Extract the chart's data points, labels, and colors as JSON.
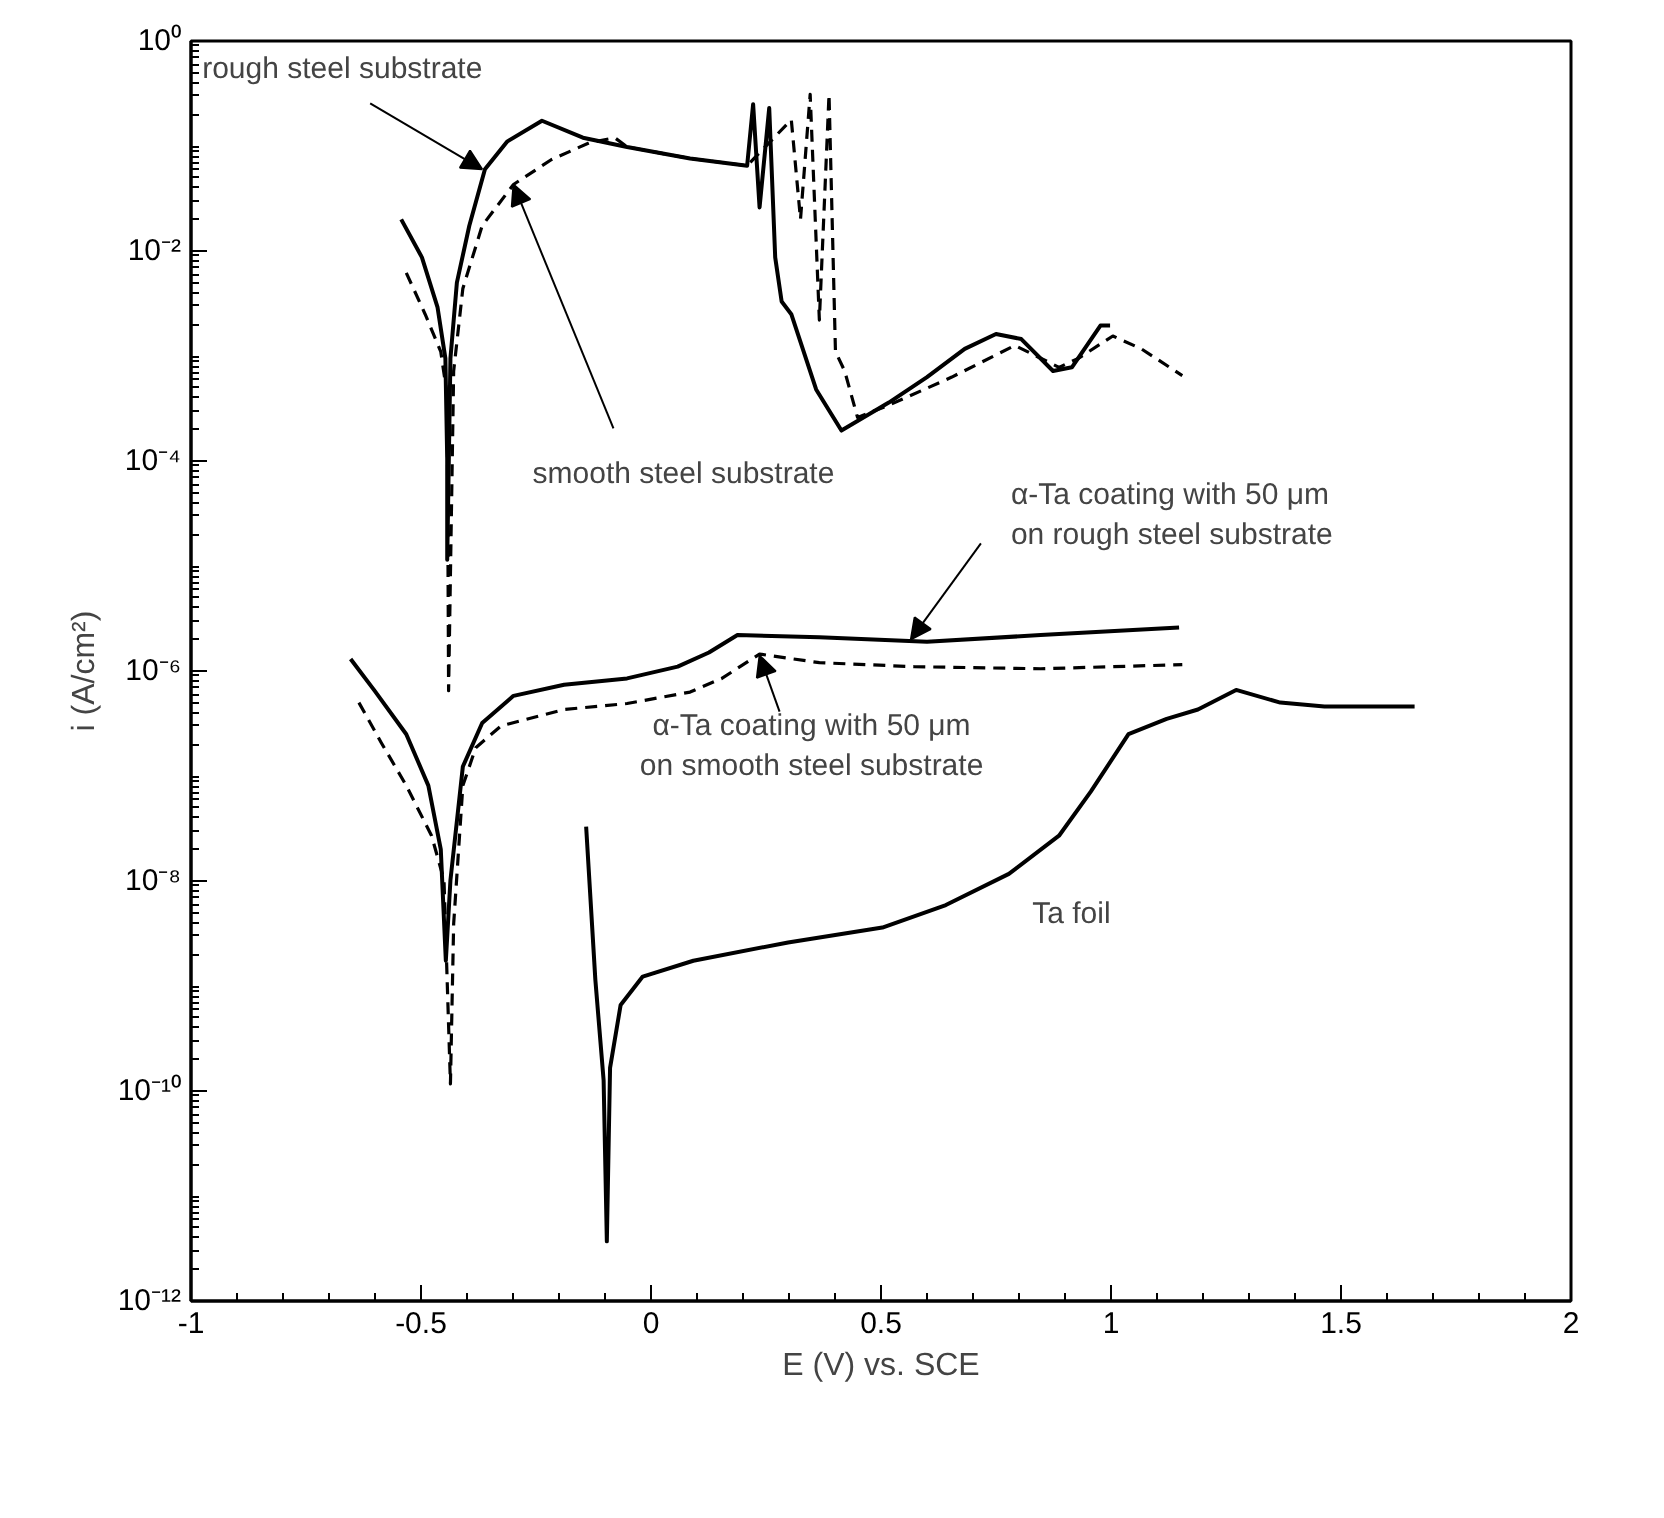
{
  "chart_data": {
    "type": "line",
    "xlabel": "E (V) vs. SCE",
    "ylabel": "i (A/cm²)",
    "log": "y",
    "xlim": [
      -1,
      2
    ],
    "xticks": [
      -1,
      -0.5,
      0,
      0.5,
      1,
      1.5,
      2
    ],
    "ylim": [
      1e-12,
      1
    ],
    "yticks": [
      {
        "value": 1e-12,
        "label": "10⁻¹²"
      },
      {
        "value": 1e-10,
        "label": "10⁻¹⁰"
      },
      {
        "value": 1e-08,
        "label": "10⁻⁸"
      },
      {
        "value": 1e-06,
        "label": "10⁻⁶"
      },
      {
        "value": 0.0001,
        "label": "10⁻⁴"
      },
      {
        "value": 0.01,
        "label": "10⁻²"
      },
      {
        "value": 1,
        "label": "10⁰"
      }
    ],
    "grid": false,
    "marker": "none",
    "series": [
      {
        "color": "#000000",
        "line_style": "solid",
        "x": [
          -0.543,
          -0.498,
          -0.464,
          -0.447,
          -0.443,
          -0.443,
          -0.436,
          -0.422,
          -0.395,
          -0.361,
          -0.313,
          -0.237,
          -0.148,
          -0.052,
          0.085,
          0.209,
          0.222,
          0.236,
          0.257,
          0.27,
          0.284,
          0.305,
          0.359,
          0.414,
          0.517,
          0.6,
          0.682,
          0.75,
          0.805,
          0.874,
          0.915,
          0.977,
          0.998
        ],
        "values": [
          0.02,
          0.0087,
          0.0029,
          0.00095,
          0.000105,
          1.15e-05,
          0.00095,
          0.005,
          0.0174,
          0.06,
          0.11,
          0.174,
          0.12,
          0.098,
          0.076,
          0.065,
          0.25,
          0.026,
          0.23,
          0.0087,
          0.0033,
          0.0025,
          0.00048,
          0.000195,
          0.00036,
          0.00063,
          0.00117,
          0.00162,
          0.00145,
          0.00072,
          0.00078,
          0.00195,
          0.00195
        ]
      },
      {
        "color": "#000000",
        "line_style": "dashed",
        "x": [
          -0.532,
          -0.491,
          -0.457,
          -0.443,
          -0.44,
          -0.429,
          -0.409,
          -0.367,
          -0.299,
          -0.217,
          -0.135,
          -0.079,
          -0.052,
          0.085,
          0.209,
          0.305,
          0.325,
          0.346,
          0.366,
          0.387,
          0.401,
          0.421,
          0.449,
          0.517,
          0.654,
          0.791,
          0.887,
          0.929,
          1.004,
          1.066,
          1.155
        ],
        "values": [
          0.0062,
          0.0025,
          0.0011,
          0.00042,
          6.5e-07,
          0.00072,
          0.0044,
          0.0174,
          0.043,
          0.074,
          0.107,
          0.12,
          0.098,
          0.076,
          0.065,
          0.178,
          0.02,
          0.31,
          0.0022,
          0.31,
          0.0011,
          0.00072,
          0.00026,
          0.00034,
          0.00063,
          0.00126,
          0.00078,
          0.00095,
          0.00155,
          0.00117,
          0.00065
        ]
      },
      {
        "color": "#000000",
        "line_style": "solid",
        "x": [
          -0.653,
          -0.601,
          -0.532,
          -0.484,
          -0.457,
          -0.446,
          -0.436,
          -0.409,
          -0.367,
          -0.299,
          -0.189,
          -0.052,
          0.058,
          0.126,
          0.188,
          0.366,
          0.6,
          0.847,
          1.148
        ],
        "values": [
          1.3e-06,
          6.5e-07,
          2.5e-07,
          8.1e-08,
          2e-08,
          1.74e-09,
          1.02e-08,
          1.23e-07,
          3.2e-07,
          5.8e-07,
          7.4e-07,
          8.5e-07,
          1.1e-06,
          1.5e-06,
          2.2e-06,
          2.1e-06,
          1.9e-06,
          2.2e-06,
          2.6e-06
        ]
      },
      {
        "color": "#000000",
        "line_style": "dashed",
        "x": [
          -0.635,
          -0.587,
          -0.532,
          -0.477,
          -0.45,
          -0.436,
          -0.429,
          -0.409,
          -0.381,
          -0.326,
          -0.189,
          -0.052,
          0.085,
          0.154,
          0.236,
          0.366,
          0.572,
          0.847,
          1.155
        ],
        "values": [
          5e-07,
          2.1e-07,
          8.1e-08,
          2.7e-08,
          1.02e-08,
          1.17e-10,
          3.9e-09,
          8.1e-08,
          1.86e-07,
          3e-07,
          4.3e-07,
          4.9e-07,
          6.3e-07,
          8.5e-07,
          1.45e-06,
          1.2e-06,
          1.1e-06,
          1.05e-06,
          1.15e-06
        ]
      },
      {
        "color": "#000000",
        "line_style": "solid",
        "x": [
          -0.141,
          -0.121,
          -0.103,
          -0.096,
          -0.089,
          -0.066,
          -0.018,
          0.092,
          0.298,
          0.503,
          0.641,
          0.778,
          0.887,
          0.956,
          1.038,
          1.121,
          1.189,
          1.272,
          1.368,
          1.464,
          1.66
        ],
        "values": [
          3.3e-08,
          1.15e-09,
          1.26e-10,
          3.7e-12,
          1.66e-10,
          6.6e-10,
          1.23e-09,
          1.74e-09,
          2.6e-09,
          3.6e-09,
          5.9e-09,
          1.17e-08,
          2.7e-08,
          7.1e-08,
          2.5e-07,
          3.5e-07,
          4.3e-07,
          6.6e-07,
          5e-07,
          4.6e-07,
          4.6e-07
        ]
      }
    ],
    "annotations": [
      {
        "text": "rough steel substrate",
        "x": -0.367,
        "y": 0.06
      },
      {
        "text": "smooth steel substrate",
        "x": -0.299,
        "y": 0.043
      },
      {
        "text": "α-Ta coating with 50 μm\non rough steel substrate",
        "x": 0.565,
        "y": 2e-06
      },
      {
        "text": "α-Ta coating with 50 μm\non smooth steel substrate",
        "x": 0.236,
        "y": 1.4e-06
      },
      "Ta foil"
    ]
  }
}
